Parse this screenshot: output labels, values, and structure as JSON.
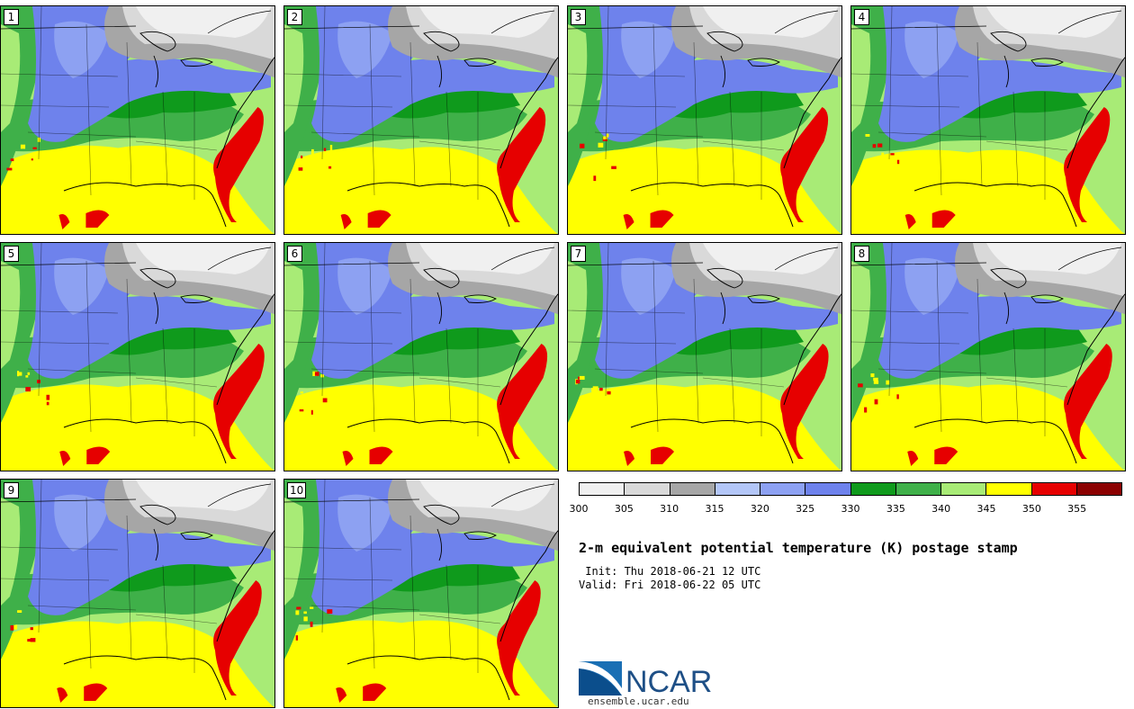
{
  "panels": [
    "1",
    "2",
    "3",
    "4",
    "5",
    "6",
    "7",
    "8",
    "9",
    "10"
  ],
  "colorbar": {
    "ticks": [
      "300",
      "305",
      "310",
      "315",
      "320",
      "325",
      "330",
      "335",
      "340",
      "345",
      "350",
      "355"
    ],
    "colors": [
      "#f0f0f0",
      "#d9d9d9",
      "#a6a6a6",
      "#b3c6f7",
      "#8da1f2",
      "#6e82ec",
      "#0f9a1c",
      "#3fb049",
      "#a8eb76",
      "#ffff00",
      "#e60000",
      "#8b0000"
    ]
  },
  "title": "2-m equivalent potential temperature (K) postage stamp",
  "init": " Init: Thu 2018-06-21 12 UTC",
  "valid": "Valid: Fri 2018-06-22 05 UTC",
  "logo": {
    "text": "NCAR",
    "url": "ensemble.ucar.edu"
  }
}
